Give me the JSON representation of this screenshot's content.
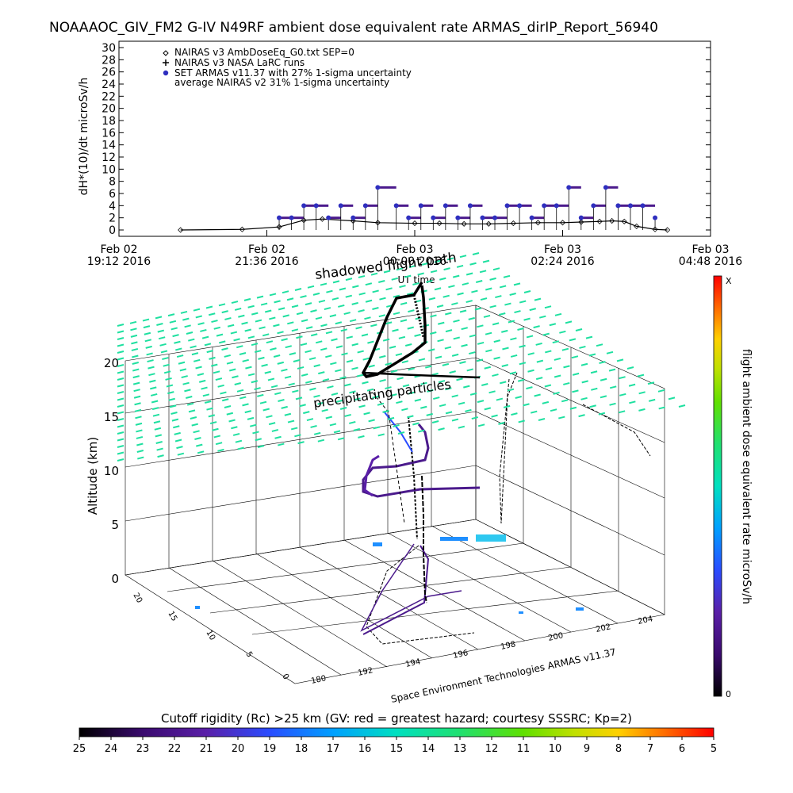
{
  "title": "NOAAAOC_GIV_FM2 G-IV    N49RF   ambient dose equivalent rate ARMAS_dirIP_Report_56940",
  "colors": {
    "armas": "#4b1a8c",
    "armas_dot": "#2f2fbf",
    "nairas_v3": "#000000",
    "grid_sheet": "#1fe0a0",
    "rc_scale": [
      "#000000",
      "#3a0a6e",
      "#5a1fa8",
      "#2a4cff",
      "#00a0ff",
      "#00e0d0",
      "#20e080",
      "#40e020",
      "#a0e000",
      "#ffe000",
      "#ffa000",
      "#ff5000",
      "#ff0000"
    ]
  },
  "top_chart": {
    "ylabel": "dH*(10)/dt microSv/h",
    "yticks": [
      "0",
      "2",
      "4",
      "6",
      "8",
      "10",
      "12",
      "14",
      "16",
      "18",
      "20",
      "22",
      "24",
      "26",
      "28",
      "30"
    ],
    "xticks": [
      {
        "l1": "Feb 02",
        "l2": "19:12 2016"
      },
      {
        "l1": "Feb 02",
        "l2": "21:36 2016"
      },
      {
        "l1": "Feb 03",
        "l2": "00:00 2016"
      },
      {
        "l1": "Feb 03",
        "l2": "02:24 2016"
      },
      {
        "l1": "Feb 03",
        "l2": "04:48 2016"
      }
    ],
    "xlabel": "UT time",
    "legend": [
      {
        "symbol": "diamond",
        "text": "NAIRAS v3 AmbDoseEq_G0.txt SEP=0"
      },
      {
        "symbol": "plus",
        "text": "NAIRAS v3 NASA LaRC runs"
      },
      {
        "symbol": "dot",
        "text": "SET ARMAS v11.37 with 27% 1-sigma uncertainty"
      },
      {
        "symbol": "none",
        "text": "average NAIRAS v2 31% 1-sigma uncertainty"
      }
    ]
  },
  "chart_data": [
    {
      "type": "line",
      "title": "NOAAAOC_GIV_FM2 G-IV    N49RF   ambient dose equivalent rate ARMAS_dirIP_Report_56940",
      "xlabel": "UT time",
      "ylabel": "dH*(10)/dt microSv/h",
      "ylim": [
        0,
        30
      ],
      "x_unit": "hours after Feb 02 19:12 2016",
      "xlim": [
        0,
        9.6
      ],
      "series": [
        {
          "name": "NAIRAS v3 AmbDoseEq_G0.txt SEP=0",
          "x": [
            1.0,
            2.0,
            2.6,
            3.0,
            3.3,
            3.8,
            4.2,
            4.8,
            5.2,
            5.6,
            6.0,
            6.4,
            6.8,
            7.2,
            7.5,
            7.8,
            8.0,
            8.2,
            8.4,
            8.7,
            8.9
          ],
          "values": [
            0,
            0.1,
            0.5,
            1.6,
            1.8,
            1.5,
            1.2,
            1.1,
            1.1,
            1.0,
            1.0,
            1.1,
            1.2,
            1.2,
            1.3,
            1.4,
            1.5,
            1.4,
            0.6,
            0.1,
            0
          ]
        },
        {
          "name": "SET ARMAS v11.37 with 27% 1-sigma uncertainty",
          "x": [
            2.6,
            2.8,
            3.0,
            3.2,
            3.4,
            3.6,
            3.8,
            4.0,
            4.2,
            4.5,
            4.7,
            4.9,
            5.1,
            5.3,
            5.5,
            5.7,
            5.9,
            6.1,
            6.3,
            6.5,
            6.7,
            6.9,
            7.1,
            7.3,
            7.5,
            7.7,
            7.9,
            8.1,
            8.3,
            8.5,
            8.7
          ],
          "values": [
            2,
            2,
            4,
            4,
            2,
            4,
            2,
            4,
            7,
            4,
            2,
            4,
            2,
            4,
            2,
            4,
            2,
            2,
            4,
            4,
            2,
            4,
            4,
            7,
            2,
            4,
            7,
            4,
            4,
            4,
            2
          ]
        }
      ]
    },
    {
      "type": "scatter",
      "subtype": "3d-trajectory",
      "zlabel": "Altitude (km)",
      "zticks": [
        "0",
        "5",
        "10",
        "15",
        "20"
      ],
      "xticks": [
        "180",
        "192",
        "194",
        "196",
        "198",
        "200",
        "202",
        "204"
      ],
      "yticks": [
        "0",
        "5",
        "10",
        "15",
        "20"
      ],
      "annotations": [
        "shadowed flight path",
        "precipitating particles"
      ],
      "credit": "Space Environment Technologies ARMAS v11.37",
      "colorbar_label": "flight ambient dose equivalent rate microSv/h",
      "colorbar_top": "X",
      "colorbar_bottom": "0"
    }
  ],
  "rc_colorbar": {
    "title": "Cutoff rigidity (Rc) >25 km (GV: red = greatest hazard; courtesy SSSRC; Kp=2)",
    "ticks": [
      "25",
      "24",
      "23",
      "22",
      "21",
      "20",
      "19",
      "18",
      "17",
      "16",
      "15",
      "14",
      "13",
      "12",
      "11",
      "10",
      "9",
      "8",
      "7",
      "6",
      "5"
    ]
  }
}
